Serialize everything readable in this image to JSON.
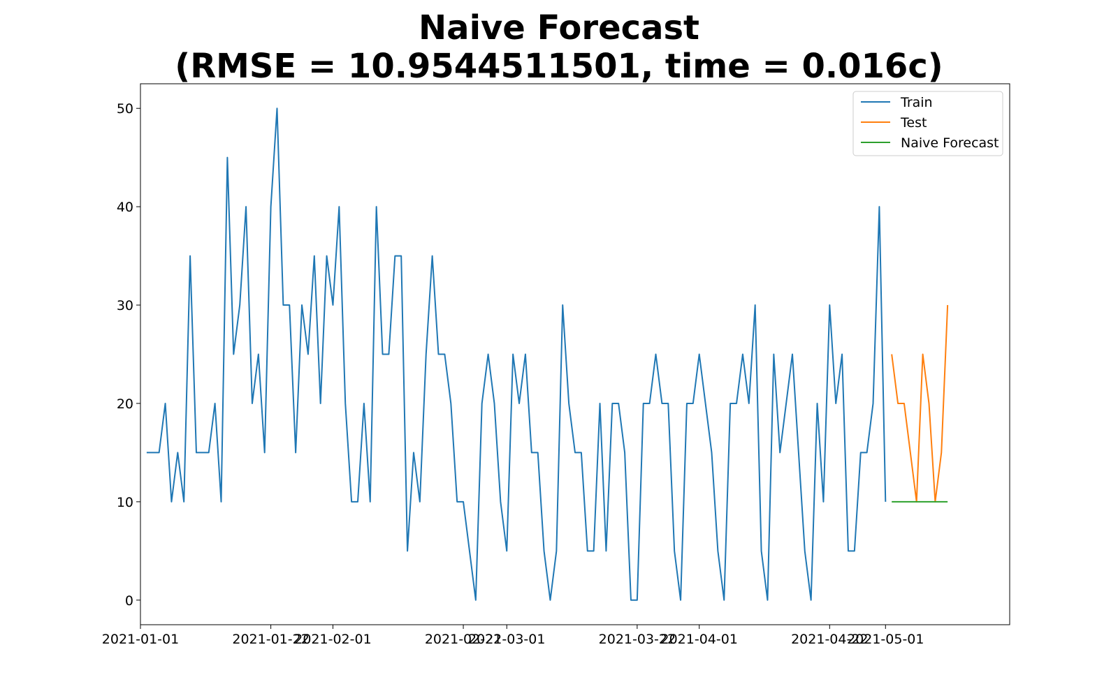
{
  "chart_data": {
    "type": "line",
    "title_line1": "Naive Forecast",
    "title_line2": "(RMSE = 10.9544511501, time = 0.016c)",
    "xlabel": "",
    "ylabel": "",
    "x_range": [
      "2021-01-01",
      "2021-05-21"
    ],
    "ylim": [
      -2.5,
      52.5
    ],
    "grid": false,
    "legend_position": "top-right",
    "y_ticks": [
      0,
      10,
      20,
      30,
      40,
      50
    ],
    "x_ticks": [
      "2021-01-01",
      "2021-01-22",
      "2021-02-01",
      "2021-02-22",
      "2021-03-01",
      "2021-03-22",
      "2021-04-01",
      "2021-04-22",
      "2021-05-01"
    ],
    "series": [
      {
        "name": "Train",
        "color": "#1f77b4",
        "x_start": "2021-01-02",
        "values": [
          15,
          15,
          15,
          20,
          10,
          15,
          10,
          35,
          15,
          15,
          15,
          20,
          10,
          45,
          25,
          30,
          40,
          20,
          25,
          15,
          40,
          50,
          30,
          30,
          15,
          30,
          25,
          35,
          20,
          35,
          30,
          40,
          20,
          10,
          10,
          20,
          10,
          40,
          25,
          25,
          35,
          35,
          5,
          15,
          10,
          25,
          35,
          25,
          25,
          20,
          10,
          10,
          5,
          0,
          20,
          25,
          20,
          10,
          5,
          25,
          20,
          25,
          15,
          15,
          5,
          0,
          5,
          30,
          20,
          15,
          15,
          5,
          5,
          20,
          5,
          20,
          20,
          15,
          0,
          0,
          20,
          20,
          25,
          20,
          20,
          5,
          0,
          20,
          20,
          25,
          20,
          15,
          5,
          0,
          20,
          20,
          25,
          20,
          30,
          5,
          0,
          25,
          15,
          20,
          25,
          15,
          5,
          0,
          20,
          10,
          30,
          20,
          25,
          5,
          5,
          15,
          15,
          20,
          40,
          10
        ]
      },
      {
        "name": "Test",
        "color": "#ff7f0e",
        "x_start": "2021-05-02",
        "values": [
          25,
          20,
          20,
          15,
          10,
          25,
          20,
          10,
          15,
          30
        ]
      },
      {
        "name": "Naive Forecast",
        "color": "#2ca02c",
        "x_start": "2021-05-02",
        "values": [
          10,
          10,
          10,
          10,
          10,
          10,
          10,
          10,
          10,
          10
        ]
      }
    ]
  }
}
